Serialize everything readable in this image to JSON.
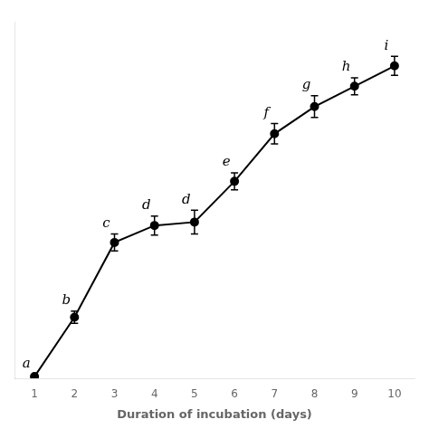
{
  "chart_data": {
    "type": "line",
    "xlabel": "Duration of incubation (days)",
    "x": [
      1,
      2,
      3,
      4,
      5,
      6,
      7,
      8,
      9,
      10
    ],
    "series": [
      {
        "values": [
          0.005,
          0.18,
          0.4,
          0.45,
          0.46,
          0.58,
          0.72,
          0.8,
          0.86,
          0.92
        ],
        "yerr": [
          0.006,
          0.018,
          0.025,
          0.028,
          0.035,
          0.025,
          0.03,
          0.032,
          0.025,
          0.028
        ],
        "color": "#000000",
        "marker": "circle",
        "line_style": "solid"
      }
    ],
    "annotations": [
      "a",
      "b",
      "c",
      "d",
      "d",
      "e",
      "f",
      "g",
      "h",
      "i"
    ],
    "xlim": [
      0.5,
      10.5
    ],
    "ylim": [
      0.0,
      1.05
    ],
    "xticks": [
      1,
      2,
      3,
      4,
      5,
      6,
      7,
      8,
      9,
      10
    ],
    "tick_labels": "x",
    "grid": false
  }
}
